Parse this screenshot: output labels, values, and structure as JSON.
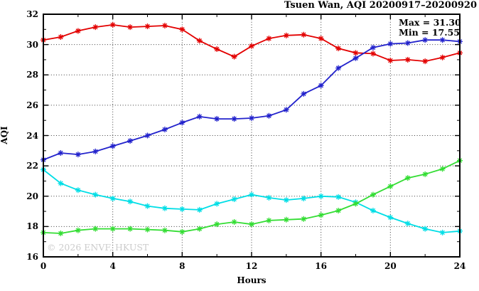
{
  "title": "Tsuen Wan, AQI 20200917–20200920",
  "annotation": {
    "max_label": "Max = 31.30",
    "min_label": "Min = 17.55"
  },
  "watermark": "© 2026 ENVF, HKUST",
  "chart_data": {
    "type": "line",
    "title": "Tsuen Wan, AQI 20200917–20200920",
    "xlabel": "Hours",
    "ylabel": "AQI",
    "xlim": [
      0,
      24
    ],
    "ylim": [
      16,
      32
    ],
    "x_major_ticks": [
      0,
      4,
      8,
      12,
      16,
      20,
      24
    ],
    "x_minor_ticks": [
      2,
      6,
      10,
      14,
      18,
      22
    ],
    "y_major_ticks": [
      16,
      18,
      20,
      22,
      24,
      26,
      28,
      30,
      32
    ],
    "y_minor_ticks": [
      17,
      19,
      21,
      23,
      25,
      27,
      29,
      31
    ],
    "x_gridlines": [
      4,
      8,
      12,
      16,
      20
    ],
    "y_gridlines": [
      18,
      20,
      22,
      24,
      26,
      28,
      30
    ],
    "grid": "dotted",
    "legend": "none",
    "marker": "asterisk",
    "x": [
      0,
      1,
      2,
      3,
      4,
      5,
      6,
      7,
      8,
      9,
      10,
      11,
      12,
      13,
      14,
      15,
      16,
      17,
      18,
      19,
      20,
      21,
      22,
      23,
      24
    ],
    "series": [
      {
        "name": "red-line",
        "color": "#e30000",
        "values": [
          30.3,
          30.5,
          30.9,
          31.15,
          31.3,
          31.15,
          31.2,
          31.25,
          31.0,
          30.25,
          29.7,
          29.2,
          29.9,
          30.4,
          30.6,
          30.65,
          30.4,
          29.75,
          29.45,
          29.4,
          28.95,
          29.0,
          28.9,
          29.15,
          29.45
        ]
      },
      {
        "name": "blue-line",
        "color": "#2222cc",
        "values": [
          22.4,
          22.85,
          22.75,
          22.95,
          23.3,
          23.65,
          24.0,
          24.4,
          24.85,
          25.25,
          25.1,
          25.1,
          25.15,
          25.3,
          25.7,
          26.75,
          27.3,
          28.45,
          29.1,
          29.8,
          30.05,
          30.1,
          30.3,
          30.3,
          30.2
        ]
      },
      {
        "name": "cyan-line",
        "color": "#00dee6",
        "values": [
          21.75,
          20.85,
          20.4,
          20.1,
          19.85,
          19.65,
          19.35,
          19.2,
          19.15,
          19.1,
          19.5,
          19.8,
          20.1,
          19.9,
          19.75,
          19.85,
          20.0,
          19.95,
          19.6,
          19.05,
          18.6,
          18.2,
          17.85,
          17.6,
          17.7
        ]
      },
      {
        "name": "green-line",
        "color": "#33dd33",
        "values": [
          17.6,
          17.55,
          17.75,
          17.85,
          17.85,
          17.85,
          17.8,
          17.75,
          17.65,
          17.85,
          18.15,
          18.3,
          18.15,
          18.4,
          18.45,
          18.5,
          18.75,
          19.05,
          19.5,
          20.1,
          20.65,
          21.2,
          21.45,
          21.8,
          22.35
        ]
      }
    ],
    "annotations": [
      "Max = 31.30",
      "Min = 17.55"
    ],
    "stats": {
      "max": 31.3,
      "min": 17.55
    }
  }
}
